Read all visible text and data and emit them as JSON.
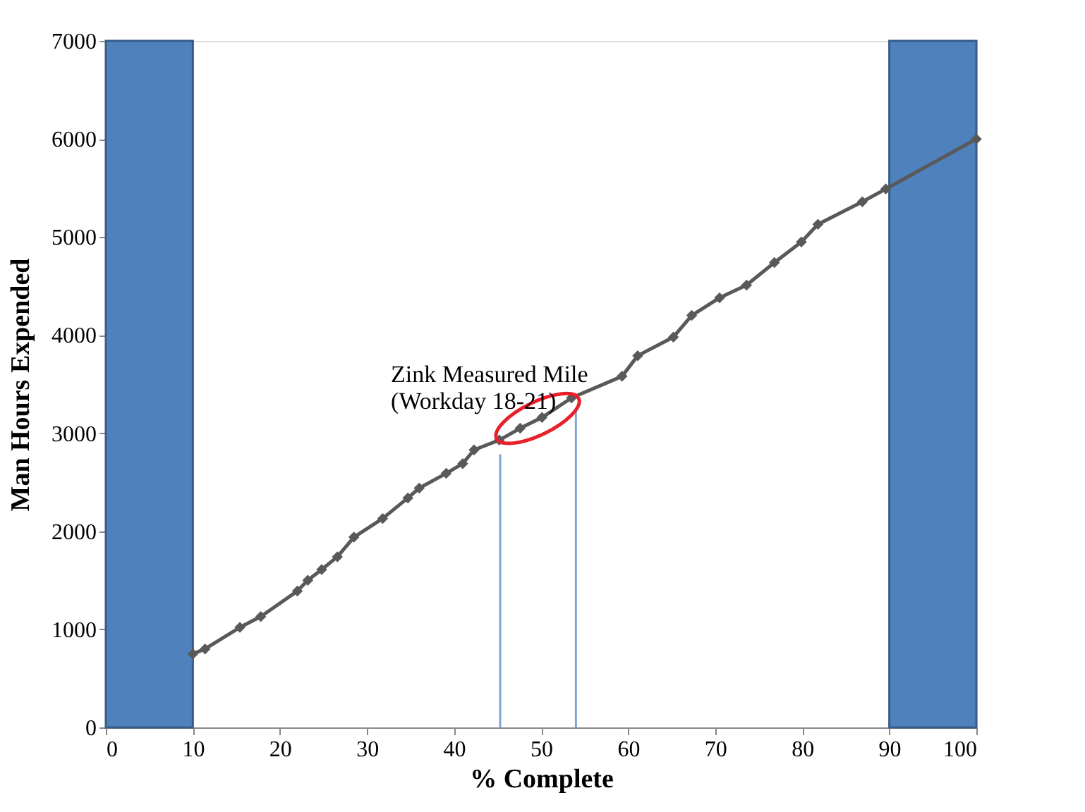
{
  "chart_data": {
    "type": "line",
    "xlabel": "% Complete",
    "ylabel": "Man Hours Expended",
    "x": [
      10,
      11.4,
      15.4,
      17.8,
      22.0,
      23.2,
      24.8,
      26.6,
      28.5,
      31.8,
      34.7,
      36.0,
      39.1,
      41.0,
      42.3,
      45.2,
      47.6,
      50.1,
      53.5,
      59.3,
      61.1,
      65.2,
      67.3,
      70.5,
      73.6,
      76.8,
      79.9,
      81.8,
      86.9,
      89.6,
      100
    ],
    "series": [
      {
        "color": "#595959",
        "values": [
          750,
          800,
          1020,
          1130,
          1390,
          1500,
          1610,
          1740,
          1940,
          2130,
          2340,
          2440,
          2590,
          2690,
          2830,
          2930,
          3050,
          3160,
          3360,
          3580,
          3790,
          3980,
          4200,
          4380,
          4510,
          4740,
          4950,
          5130,
          5360,
          5490,
          6000
        ]
      }
    ],
    "xlim": [
      0,
      100
    ],
    "ylim": [
      0,
      7000
    ],
    "xticks": [
      0,
      10,
      20,
      30,
      40,
      50,
      60,
      70,
      80,
      90,
      100
    ],
    "yticks": [
      0,
      1000,
      2000,
      3000,
      4000,
      5000,
      6000,
      7000
    ],
    "bands": [
      {
        "axis": "x",
        "from": 0,
        "to": 10,
        "color": "#4f81bd"
      },
      {
        "axis": "x",
        "from": 90,
        "to": 100,
        "color": "#4f81bd"
      }
    ],
    "ref_lines": [
      {
        "axis": "x",
        "value": 45.3,
        "color": "#7fa6d6"
      },
      {
        "axis": "x",
        "value": 54.0,
        "color": "#7fa6d6"
      }
    ],
    "annotations": [
      {
        "text": "Zink Measured Mile\n(Workday 18-21)",
        "x": 49.6,
        "y": 3150
      }
    ],
    "marker": "diamond",
    "line_style": "solid",
    "grid": false
  }
}
